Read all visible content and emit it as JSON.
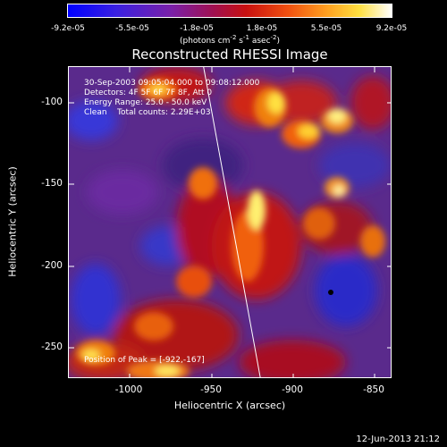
{
  "colorbar": {
    "ticks": [
      "-9.2e-05",
      "-5.5e-05",
      "-1.8e-05",
      "1.8e-05",
      "5.5e-05",
      "9.2e-05"
    ],
    "unit_pre": "(photons cm",
    "unit_sup1": "-2",
    "unit_mid": " s",
    "unit_sup2": "-1",
    "unit_mid2": " asec",
    "unit_sup3": "-2",
    "unit_post": ")"
  },
  "title": "Reconstructed RHESSI Image",
  "info": {
    "time": "30-Sep-2003 09:05:04.000 to 09:08:12.000",
    "detectors": "Detectors: 4F 5F 6F 7F 8F, Att 0",
    "energy": "Energy Range: 25.0 - 50.0 keV",
    "clean": "Clean    Total counts: 2.29E+03"
  },
  "peak": "Position of Peak = [-922,-167]",
  "axes": {
    "xlabel": "Heliocentric X (arcsec)",
    "ylabel": "Heliocentric Y (arcsec)",
    "xticks": [
      "-1000",
      "-950",
      "-900",
      "-850"
    ],
    "yticks": [
      "-100",
      "-150",
      "-200",
      "-250"
    ]
  },
  "timestamp": "12-Jun-2013 21:12",
  "colors": {
    "background": "#000000",
    "foreground": "#ffffff"
  }
}
